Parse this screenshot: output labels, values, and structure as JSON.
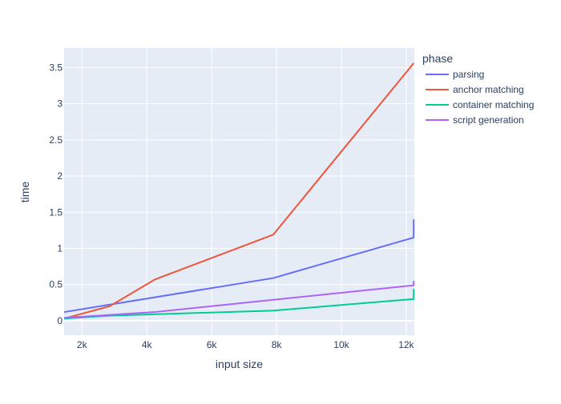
{
  "chart_data": {
    "type": "line",
    "xlabel": "input size",
    "ylabel": "time",
    "xlim": [
      1450,
      12250
    ],
    "ylim": [
      -0.2,
      3.77
    ],
    "x_ticks": [
      2000,
      4000,
      6000,
      8000,
      10000,
      12000
    ],
    "x_tick_labels": [
      "2k",
      "4k",
      "6k",
      "8k",
      "10k",
      "12k"
    ],
    "y_ticks": [
      0,
      0.5,
      1,
      1.5,
      2,
      2.5,
      3,
      3.5
    ],
    "y_tick_labels": [
      "0",
      "0.5",
      "1",
      "1.5",
      "2",
      "2.5",
      "3",
      "3.5"
    ],
    "grid": true,
    "legend": {
      "title": "phase",
      "placement": "right"
    },
    "series": [
      {
        "name": "parsing",
        "color": "#636efa",
        "x": [
          1450,
          7900,
          12230,
          12230
        ],
        "y": [
          0.12,
          0.59,
          1.15,
          1.4
        ]
      },
      {
        "name": "anchor matching",
        "color": "#ef553b",
        "x": [
          1450,
          2850,
          4250,
          7900,
          12230
        ],
        "y": [
          0.03,
          0.2,
          0.57,
          1.19,
          3.56
        ]
      },
      {
        "name": "container matching",
        "color": "#00cc96",
        "x": [
          1450,
          2850,
          7900,
          12230,
          12230
        ],
        "y": [
          0.03,
          0.07,
          0.14,
          0.3,
          0.44
        ]
      },
      {
        "name": "script generation",
        "color": "#ab63fa",
        "x": [
          1450,
          4250,
          12230,
          12230
        ],
        "y": [
          0.04,
          0.12,
          0.49,
          0.55
        ]
      }
    ]
  }
}
